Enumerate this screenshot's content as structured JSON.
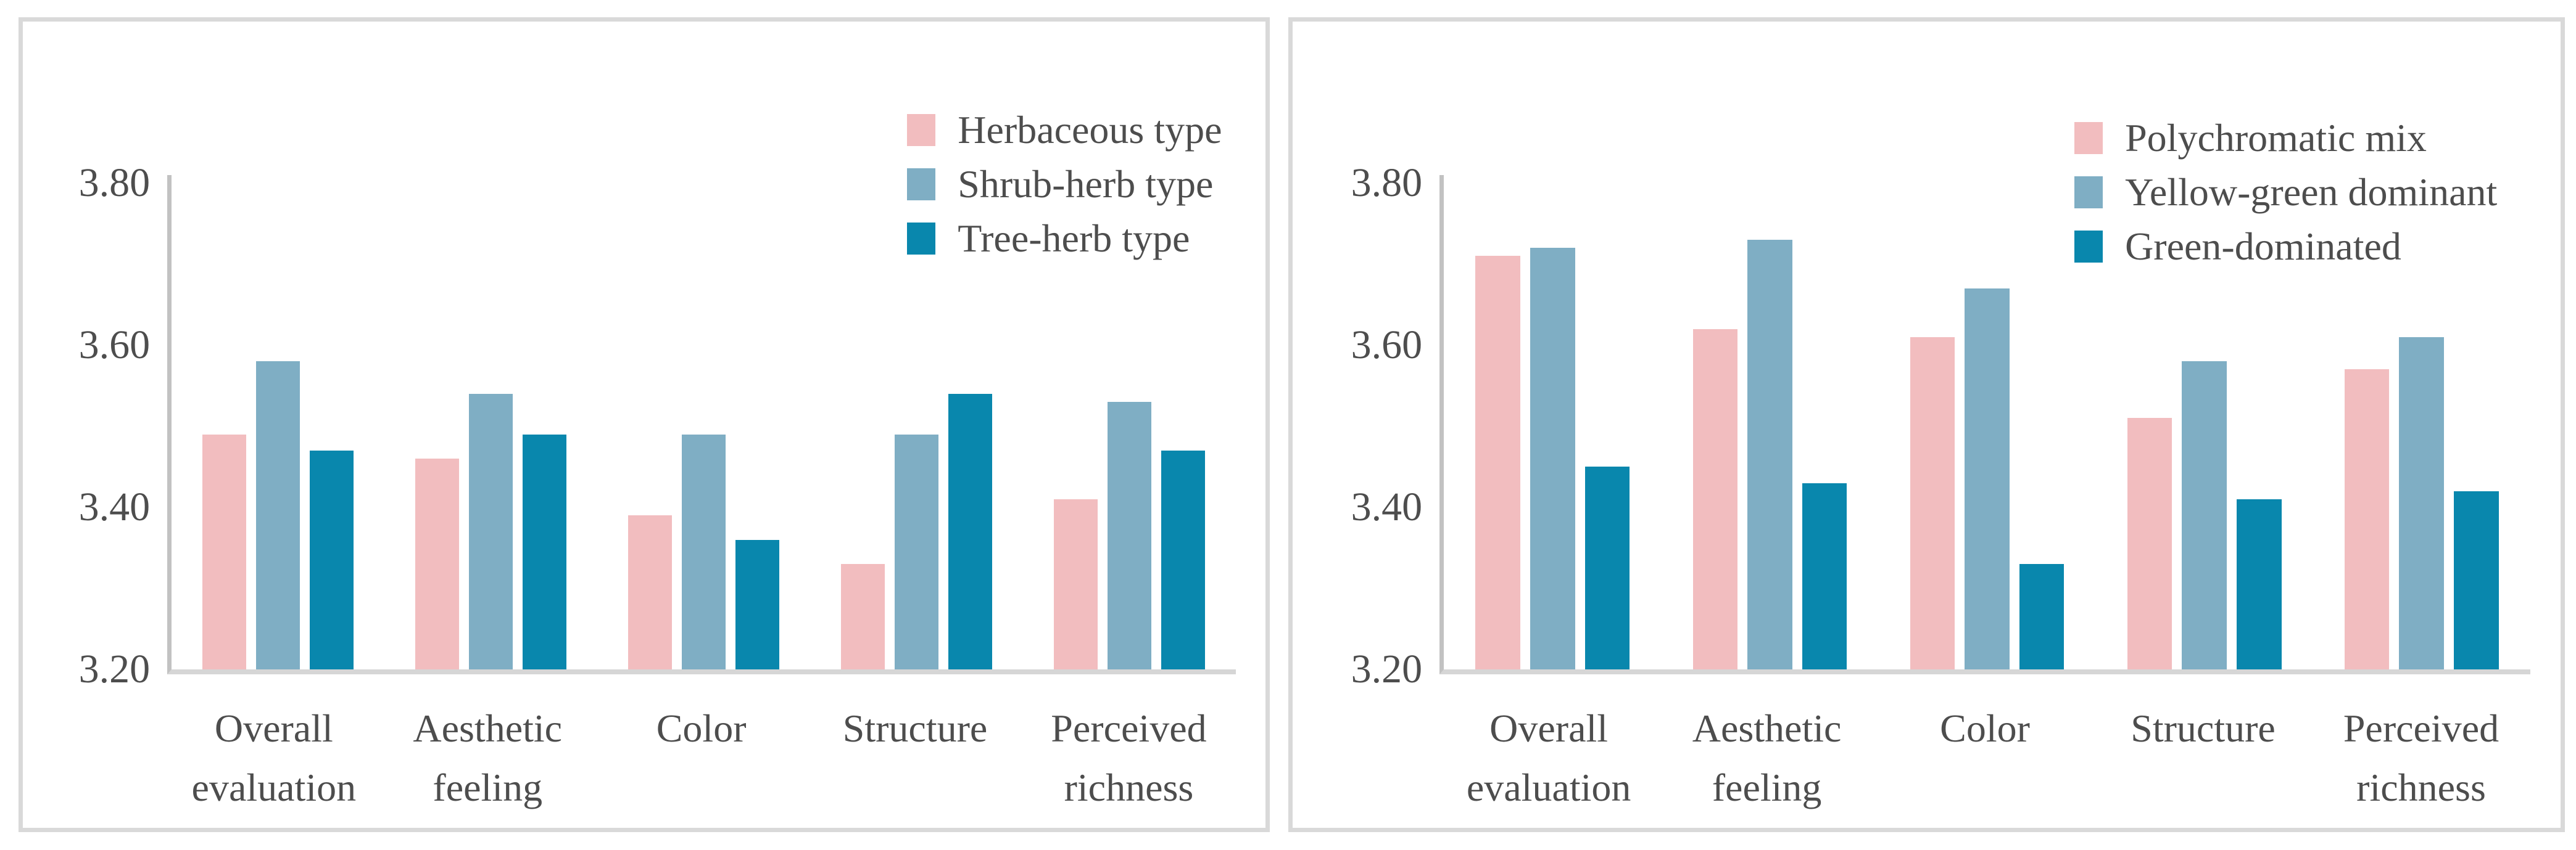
{
  "figure": {
    "background": "#FFFFFF",
    "panel_border_color": "#D9D9D9",
    "y_axis_line_color": "#C2C2C2",
    "x_baseline_color": "#D6D6D6",
    "text_color": "#4D4D4D"
  },
  "chart_data": [
    {
      "type": "bar",
      "panel": "left",
      "title": "",
      "categories": [
        "Overall\nevaluation",
        "Aesthetic\nfeeling",
        "Color",
        "Structure",
        "Perceived\nrichness"
      ],
      "series": [
        {
          "name": "Herbaceous type",
          "color": "#F2BDBF",
          "values": [
            3.49,
            3.46,
            3.39,
            3.33,
            3.41
          ]
        },
        {
          "name": "Shrub-herb type",
          "color": "#7FAEC4",
          "values": [
            3.58,
            3.54,
            3.49,
            3.49,
            3.53
          ]
        },
        {
          "name": "Tree-herb type",
          "color": "#0987AD",
          "values": [
            3.47,
            3.49,
            3.36,
            3.54,
            3.47
          ]
        }
      ],
      "ylim": [
        3.2,
        3.8
      ],
      "y_headroom": 0.01,
      "yticks": [
        {
          "value": 3.2,
          "label": "3.20"
        },
        {
          "value": 3.4,
          "label": "3.40"
        },
        {
          "value": 3.6,
          "label": "3.60"
        },
        {
          "value": 3.8,
          "label": "3.80"
        }
      ],
      "grid": false,
      "legend_position": "top-right"
    },
    {
      "type": "bar",
      "panel": "right",
      "title": "",
      "categories": [
        "Overall\nevaluation",
        "Aesthetic\nfeeling",
        "Color",
        "Structure",
        "Perceived\nrichness"
      ],
      "series": [
        {
          "name": "Polychromatic mix",
          "color": "#F2BDBF",
          "values": [
            3.71,
            3.62,
            3.61,
            3.51,
            3.57
          ]
        },
        {
          "name": "Yellow-green dominant",
          "color": "#7FAEC4",
          "values": [
            3.72,
            3.73,
            3.67,
            3.58,
            3.61
          ]
        },
        {
          "name": "Green-dominated",
          "color": "#0987AD",
          "values": [
            3.45,
            3.43,
            3.33,
            3.41,
            3.42
          ]
        }
      ],
      "ylim": [
        3.2,
        3.8
      ],
      "y_headroom": 0.01,
      "yticks": [
        {
          "value": 3.2,
          "label": "3.20"
        },
        {
          "value": 3.4,
          "label": "3.40"
        },
        {
          "value": 3.6,
          "label": "3.60"
        },
        {
          "value": 3.8,
          "label": "3.80"
        }
      ],
      "grid": false,
      "legend_position": "top-right"
    }
  ]
}
